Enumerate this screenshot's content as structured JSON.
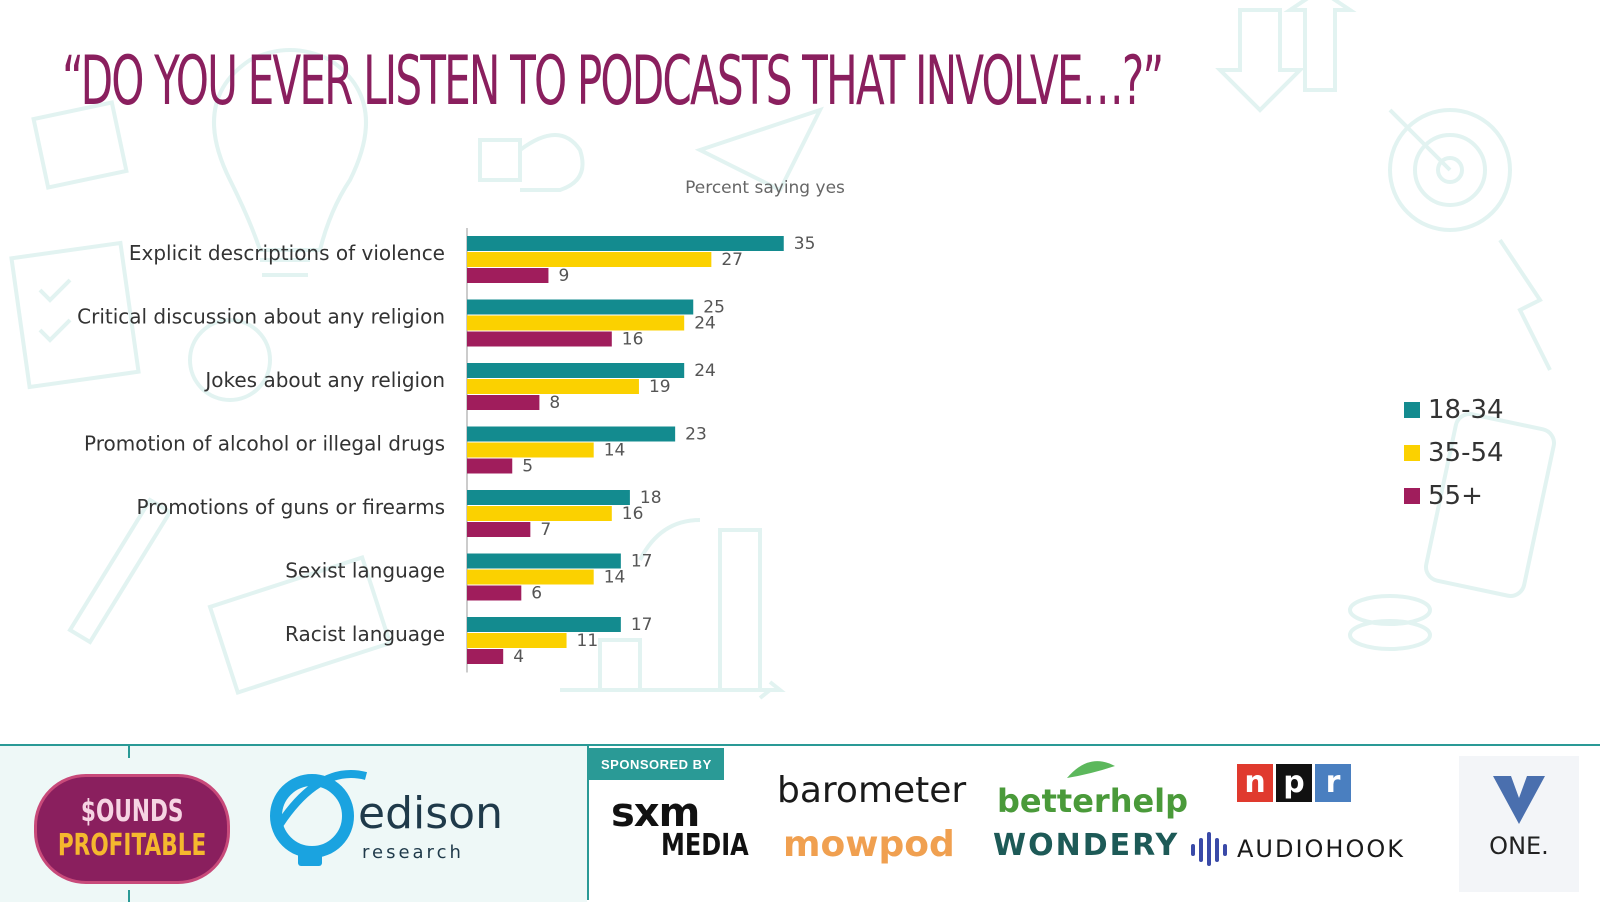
{
  "title": "“DO YOU EVER LISTEN TO PODCASTS THAT INVOLVE…?”",
  "chart_data": {
    "type": "bar",
    "orientation": "horizontal",
    "title": "“DO YOU EVER LISTEN TO PODCASTS THAT INVOLVE…?”",
    "subtitle": "Percent saying yes",
    "categories": [
      "Explicit descriptions of violence",
      "Critical discussion about any religion",
      "Jokes about any religion",
      "Promotion of alcohol or illegal drugs",
      "Promotions of guns or firearms",
      "Sexist language",
      "Racist language"
    ],
    "series": [
      {
        "name": "18-34",
        "color": "#138b8f",
        "values": [
          35,
          25,
          24,
          23,
          18,
          17,
          17
        ]
      },
      {
        "name": "35-54",
        "color": "#fbd100",
        "values": [
          27,
          24,
          19,
          14,
          16,
          14,
          11
        ]
      },
      {
        "name": "55+",
        "color": "#a01d5c",
        "values": [
          9,
          16,
          8,
          5,
          7,
          6,
          4
        ]
      }
    ],
    "xlim": [
      0,
      35
    ],
    "grid": false,
    "legend": "right"
  },
  "footer": {
    "sponsored_by": "SPONSORED BY",
    "sounds_line1": "$OUNDS",
    "sounds_line2": "PROFITABLE",
    "edison_name": "edison",
    "edison_sub": "research",
    "sponsors": {
      "sxm": "sxm",
      "sxm_media": "MEDIA",
      "barometer": "barometer",
      "mowpod": "mowpod",
      "betterhelp": "betterhelp",
      "wondery": "WONDERY",
      "npr_n": "n",
      "npr_p": "p",
      "npr_r": "r",
      "audiohook": "AUDIOHOOK",
      "one": "ONE."
    }
  }
}
